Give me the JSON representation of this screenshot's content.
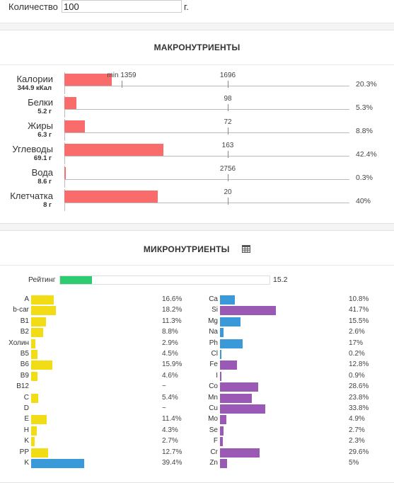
{
  "quantity": {
    "label": "Количество",
    "value": "100",
    "unit": "г."
  },
  "macro": {
    "title": "МАКРОНУТРИЕНТЫ",
    "rows": [
      {
        "name": "Калории",
        "amount": "344.9 кКал",
        "norm": "1696",
        "min": "min 1359",
        "pct": "20.3%",
        "fraction": 0.203
      },
      {
        "name": "Белки",
        "amount": "5.2 г",
        "norm": "98",
        "pct": "5.3%",
        "fraction": 0.053
      },
      {
        "name": "Жиры",
        "amount": "6.3 г",
        "norm": "72",
        "pct": "8.8%",
        "fraction": 0.088
      },
      {
        "name": "Углеводы",
        "amount": "69.1 г",
        "norm": "163",
        "pct": "42.4%",
        "fraction": 0.424
      },
      {
        "name": "Вода",
        "amount": "8.6 г",
        "norm": "2756",
        "pct": "0.3%",
        "fraction": 0.003
      },
      {
        "name": "Клетчатка",
        "amount": "8 г",
        "norm": "20",
        "pct": "40%",
        "fraction": 0.4
      }
    ]
  },
  "micro": {
    "title": "МИКРОНУТРИЕНТЫ",
    "table_icon": "table-icon",
    "rating": {
      "label": "Рейтинг",
      "value": "15.2",
      "fraction": 0.152
    },
    "colors": {
      "vitamin": "#f1dc16",
      "mineral_blue": "#3a9ad9",
      "mineral_purple": "#9b59b6"
    },
    "vitamins": [
      {
        "name": "A",
        "pct": "16.6%",
        "fraction": 0.166,
        "color": "yellow"
      },
      {
        "name": "b-car",
        "pct": "18.2%",
        "fraction": 0.182,
        "color": "yellow"
      },
      {
        "name": "B1",
        "pct": "11.3%",
        "fraction": 0.113,
        "color": "yellow"
      },
      {
        "name": "B2",
        "pct": "8.8%",
        "fraction": 0.088,
        "color": "yellow"
      },
      {
        "name": "Холин",
        "pct": "2.9%",
        "fraction": 0.029,
        "color": "yellow"
      },
      {
        "name": "B5",
        "pct": "4.5%",
        "fraction": 0.045,
        "color": "yellow"
      },
      {
        "name": "B6",
        "pct": "15.9%",
        "fraction": 0.159,
        "color": "yellow"
      },
      {
        "name": "B9",
        "pct": "4.6%",
        "fraction": 0.046,
        "color": "yellow"
      },
      {
        "name": "B12",
        "pct": "~",
        "fraction": 0,
        "color": "yellow"
      },
      {
        "name": "C",
        "pct": "5.4%",
        "fraction": 0.054,
        "color": "yellow"
      },
      {
        "name": "D",
        "pct": "~",
        "fraction": 0,
        "color": "yellow"
      },
      {
        "name": "E",
        "pct": "11.4%",
        "fraction": 0.114,
        "color": "yellow"
      },
      {
        "name": "H",
        "pct": "4.3%",
        "fraction": 0.043,
        "color": "yellow"
      },
      {
        "name": "K",
        "pct": "2.7%",
        "fraction": 0.027,
        "color": "yellow"
      },
      {
        "name": "PP",
        "pct": "12.7%",
        "fraction": 0.127,
        "color": "yellow"
      },
      {
        "name": "K",
        "pct": "39.4%",
        "fraction": 0.394,
        "color": "blue"
      }
    ],
    "minerals": [
      {
        "name": "Ca",
        "pct": "10.8%",
        "fraction": 0.108,
        "color": "blue"
      },
      {
        "name": "Si",
        "pct": "41.7%",
        "fraction": 0.417,
        "color": "purple"
      },
      {
        "name": "Mg",
        "pct": "15.5%",
        "fraction": 0.155,
        "color": "blue"
      },
      {
        "name": "Na",
        "pct": "2.6%",
        "fraction": 0.026,
        "color": "blue"
      },
      {
        "name": "Ph",
        "pct": "17%",
        "fraction": 0.17,
        "color": "blue"
      },
      {
        "name": "Cl",
        "pct": "0.2%",
        "fraction": 0.002,
        "color": "blue"
      },
      {
        "name": "Fe",
        "pct": "12.8%",
        "fraction": 0.128,
        "color": "purple"
      },
      {
        "name": "I",
        "pct": "0.9%",
        "fraction": 0.009,
        "color": "purple"
      },
      {
        "name": "Co",
        "pct": "28.6%",
        "fraction": 0.286,
        "color": "purple"
      },
      {
        "name": "Mn",
        "pct": "23.8%",
        "fraction": 0.238,
        "color": "purple"
      },
      {
        "name": "Cu",
        "pct": "33.8%",
        "fraction": 0.338,
        "color": "purple"
      },
      {
        "name": "Mo",
        "pct": "4.9%",
        "fraction": 0.049,
        "color": "purple"
      },
      {
        "name": "Se",
        "pct": "2.7%",
        "fraction": 0.027,
        "color": "purple"
      },
      {
        "name": "F",
        "pct": "2.3%",
        "fraction": 0.023,
        "color": "purple"
      },
      {
        "name": "Cr",
        "pct": "29.6%",
        "fraction": 0.296,
        "color": "purple"
      },
      {
        "name": "Zn",
        "pct": "5%",
        "fraction": 0.05,
        "color": "purple"
      }
    ]
  }
}
